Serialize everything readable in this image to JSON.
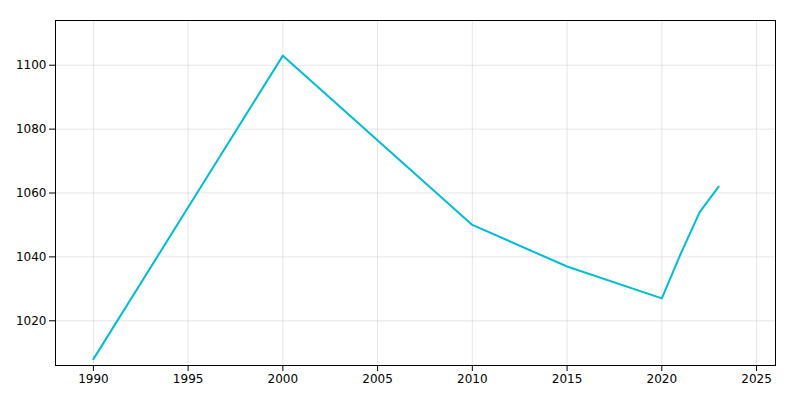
{
  "chart_data": {
    "type": "line",
    "x": [
      1990,
      2000,
      2010,
      2015,
      2020,
      2021,
      2022,
      2023
    ],
    "values": [
      1008,
      1103,
      1050,
      1037,
      1027,
      1041,
      1054,
      1062
    ],
    "color": "#00BCD4",
    "xlim": [
      1988,
      2026
    ],
    "ylim": [
      1006,
      1114
    ],
    "xticks": [
      1990,
      1995,
      2000,
      2005,
      2010,
      2015,
      2020,
      2025
    ],
    "yticks": [
      1020,
      1040,
      1060,
      1080,
      1100
    ],
    "grid": true
  }
}
